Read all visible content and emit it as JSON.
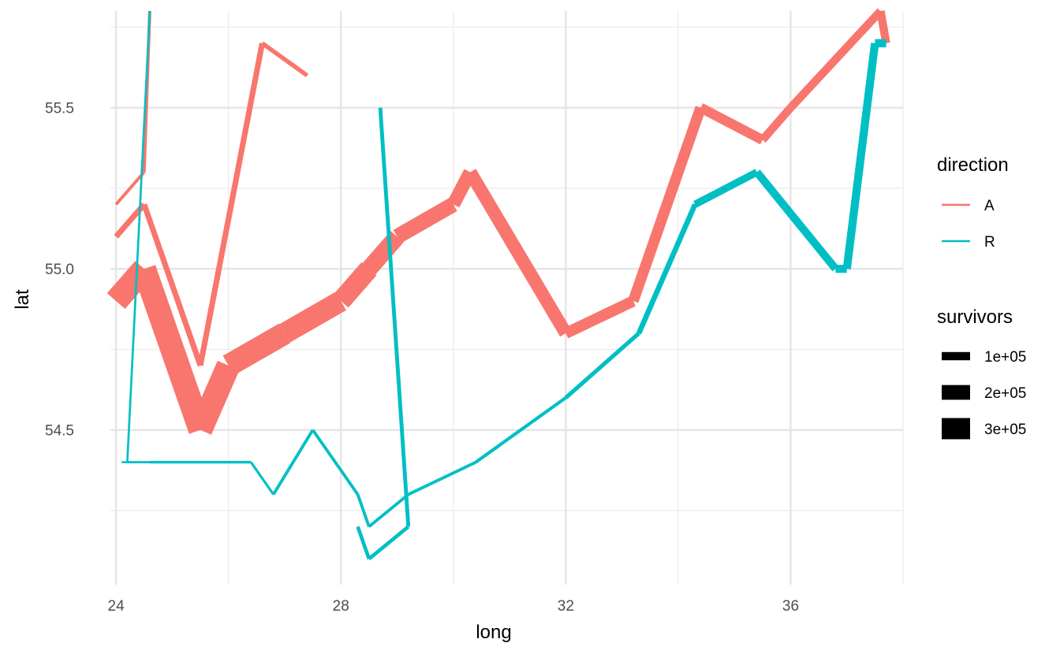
{
  "chart_data": {
    "type": "line",
    "xlabel": "long",
    "ylabel": "lat",
    "xlim": [
      23.9,
      38.0
    ],
    "ylim": [
      54.02,
      55.8
    ],
    "x_ticks": [
      24,
      28,
      32,
      36
    ],
    "x_tick_labels": [
      "24",
      "28",
      "32",
      "36"
    ],
    "y_ticks": [
      54.5,
      55.0,
      55.5
    ],
    "y_tick_labels": [
      "54.5",
      "55.0",
      "55.5"
    ],
    "grid": true,
    "legend_position": "right",
    "legend": {
      "color_title": "direction",
      "color_entries": [
        {
          "label": "A",
          "color": "#F8766D"
        },
        {
          "label": "R",
          "color": "#00BFC4"
        }
      ],
      "size_title": "survivors",
      "size_entries": [
        {
          "label": "1e+05",
          "value": 100000
        },
        {
          "label": "2e+05",
          "value": 200000
        },
        {
          "label": "3e+05",
          "value": 300000
        }
      ]
    },
    "series": [
      {
        "name": "A",
        "color": "#F8766D",
        "points": [
          {
            "x": 24.0,
            "y": 54.9,
            "survivors": 340000
          },
          {
            "x": 24.5,
            "y": 55.0,
            "survivors": 340000
          },
          {
            "x": 25.5,
            "y": 54.5,
            "survivors": 340000
          },
          {
            "x": 26.0,
            "y": 54.7,
            "survivors": 320000
          },
          {
            "x": 27.0,
            "y": 54.8,
            "survivors": 300000
          },
          {
            "x": 28.0,
            "y": 54.9,
            "survivors": 280000
          },
          {
            "x": 28.5,
            "y": 55.0,
            "survivors": 240000
          },
          {
            "x": 29.0,
            "y": 55.1,
            "survivors": 210000
          },
          {
            "x": 30.0,
            "y": 55.2,
            "survivors": 180000
          },
          {
            "x": 30.3,
            "y": 55.3,
            "survivors": 175000
          },
          {
            "x": 32.0,
            "y": 54.8,
            "survivors": 145000
          },
          {
            "x": 33.2,
            "y": 54.9,
            "survivors": 140000
          },
          {
            "x": 34.4,
            "y": 55.5,
            "survivors": 127100
          },
          {
            "x": 35.5,
            "y": 55.4,
            "survivors": 100000
          },
          {
            "x": 36.0,
            "y": 55.5,
            "survivors": 100000
          },
          {
            "x": 37.6,
            "y": 55.8,
            "survivors": 100000
          },
          {
            "x": 37.7,
            "y": 55.7,
            "survivors": 100000
          }
        ]
      },
      {
        "name": "R",
        "color": "#00BFC4",
        "points": [
          {
            "x": 37.7,
            "y": 55.7,
            "survivors": 100000
          },
          {
            "x": 37.5,
            "y": 55.7,
            "survivors": 98000
          },
          {
            "x": 37.0,
            "y": 55.0,
            "survivors": 97000
          },
          {
            "x": 36.8,
            "y": 55.0,
            "survivors": 96000
          },
          {
            "x": 35.4,
            "y": 55.3,
            "survivors": 87000
          },
          {
            "x": 34.3,
            "y": 55.2,
            "survivors": 55000
          },
          {
            "x": 33.3,
            "y": 54.8,
            "survivors": 37000
          },
          {
            "x": 32.0,
            "y": 54.6,
            "survivors": 24000
          },
          {
            "x": 30.4,
            "y": 54.4,
            "survivors": 20000
          },
          {
            "x": 29.2,
            "y": 54.3,
            "survivors": 20000
          },
          {
            "x": 28.5,
            "y": 54.2,
            "survivors": 20000
          },
          {
            "x": 28.3,
            "y": 54.3,
            "survivors": 20000
          },
          {
            "x": 27.5,
            "y": 54.5,
            "survivors": 20000
          },
          {
            "x": 26.8,
            "y": 54.3,
            "survivors": 12000
          },
          {
            "x": 26.4,
            "y": 54.4,
            "survivors": 14000
          },
          {
            "x": 24.6,
            "y": 54.4,
            "survivors": 8000
          },
          {
            "x": 24.4,
            "y": 54.4,
            "survivors": 8000
          },
          {
            "x": 24.2,
            "y": 54.4,
            "survivors": 4000
          },
          {
            "x": 24.1,
            "y": 54.4,
            "survivors": 4000
          }
        ]
      },
      {
        "name": "A",
        "color": "#F8766D",
        "points": [
          {
            "x": 24.0,
            "y": 55.1,
            "survivors": 60000
          },
          {
            "x": 24.5,
            "y": 55.2,
            "survivors": 60000
          },
          {
            "x": 25.5,
            "y": 54.7,
            "survivors": 60000
          },
          {
            "x": 26.6,
            "y": 55.7,
            "survivors": 40000
          },
          {
            "x": 27.4,
            "y": 55.6,
            "survivors": 33000
          }
        ]
      },
      {
        "name": "R",
        "color": "#00BFC4",
        "points": [
          {
            "x": 28.7,
            "y": 55.5,
            "survivors": 33000
          },
          {
            "x": 29.2,
            "y": 54.2,
            "survivors": 30000
          },
          {
            "x": 28.5,
            "y": 54.1,
            "survivors": 30000
          },
          {
            "x": 28.3,
            "y": 54.2,
            "survivors": 28000
          }
        ]
      },
      {
        "name": "A",
        "color": "#F8766D",
        "points": [
          {
            "x": 24.0,
            "y": 55.2,
            "survivors": 22000
          },
          {
            "x": 24.5,
            "y": 55.3,
            "survivors": 22000
          },
          {
            "x": 24.6,
            "y": 55.8,
            "survivors": 6000
          }
        ]
      },
      {
        "name": "R",
        "color": "#00BFC4",
        "points": [
          {
            "x": 24.6,
            "y": 55.8,
            "survivors": 6000
          },
          {
            "x": 24.2,
            "y": 54.4,
            "survivors": 6000
          }
        ]
      }
    ]
  }
}
